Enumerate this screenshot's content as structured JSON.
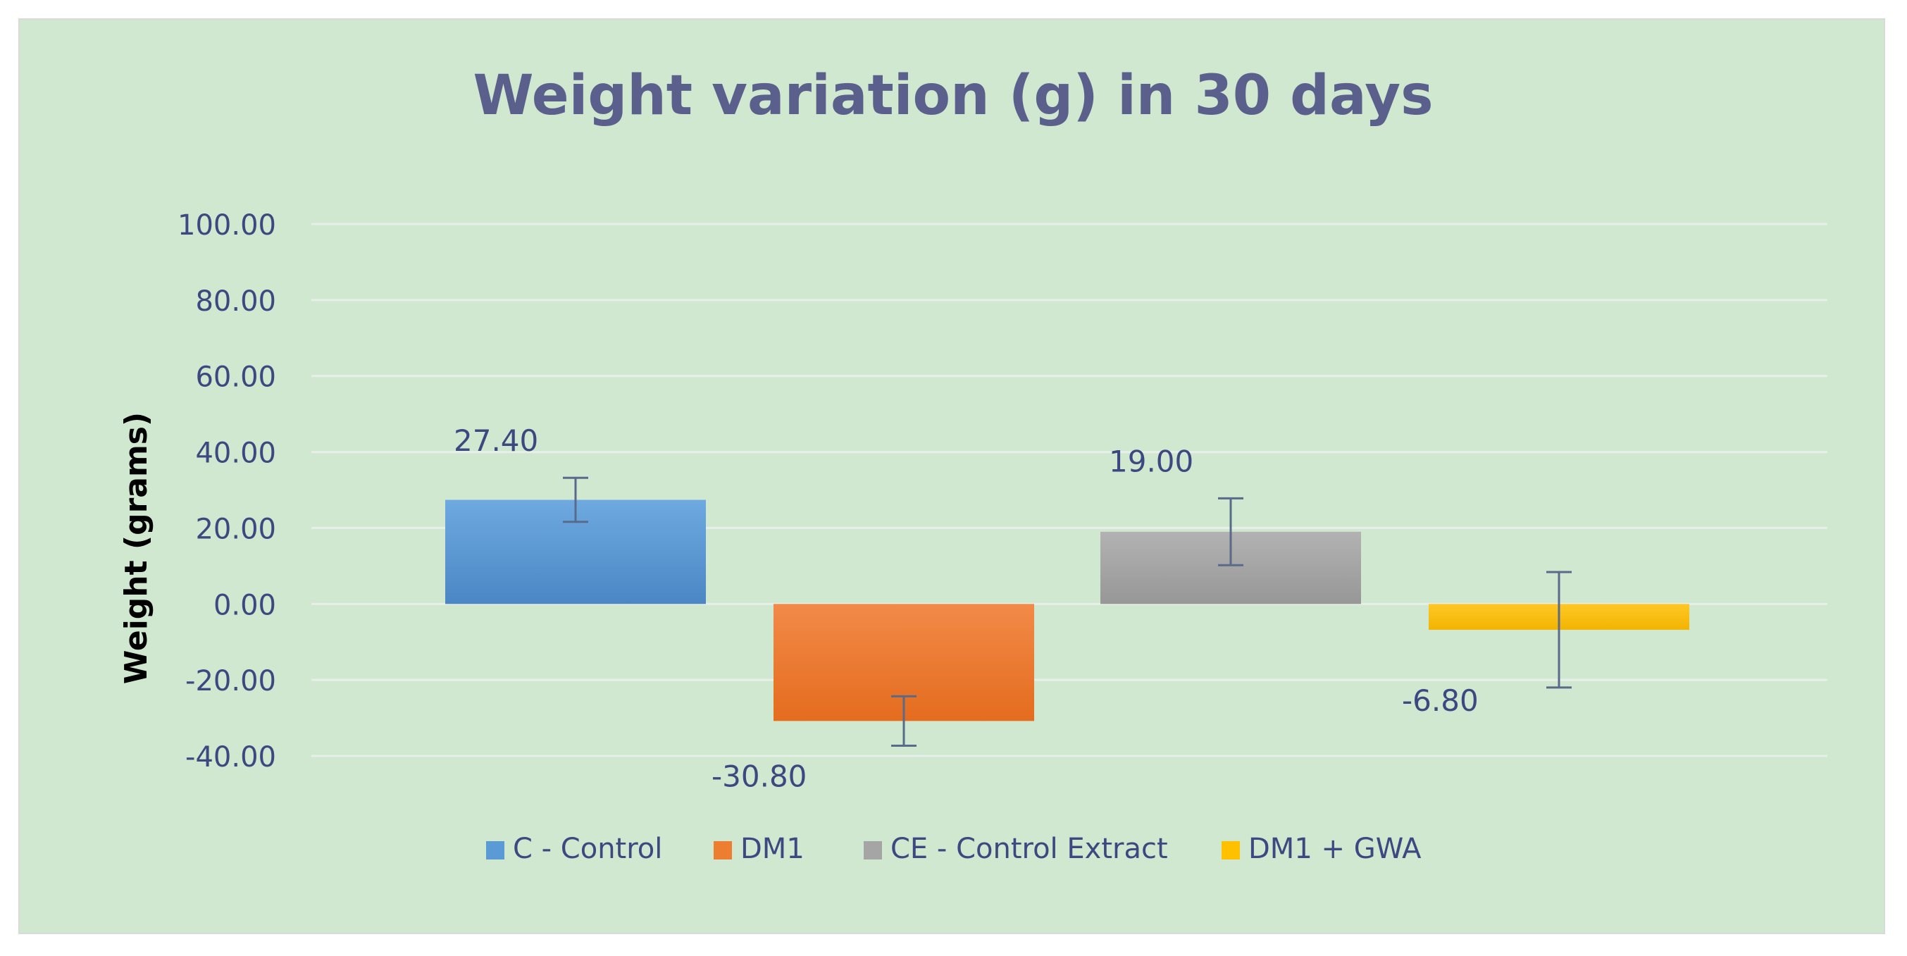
{
  "chart_data": {
    "type": "bar",
    "title": "Weight variation (g) in 30 days",
    "xlabel": "",
    "ylabel": "Weight (grams)",
    "ylim": [
      -40,
      100
    ],
    "yticks": [
      100,
      80,
      60,
      40,
      20,
      0,
      -20,
      -40
    ],
    "ytick_labels": [
      "100.00",
      "80.00",
      "60.00",
      "40.00",
      "20.00",
      "0.00",
      "-20.00",
      "-40.00"
    ],
    "grid": true,
    "legend_position": "bottom",
    "series": [
      {
        "name": "C - Control",
        "value": 27.4,
        "label": "27.40",
        "error": 5.8,
        "color": "#5b9bd5",
        "color_light": "#6ea9e0",
        "color_dark": "#4a87c4"
      },
      {
        "name": "DM1",
        "value": -30.8,
        "label": "-30.80",
        "error": 6.5,
        "color": "#ed7d31",
        "color_light": "#f28a48",
        "color_dark": "#e46c1e"
      },
      {
        "name": "CE - Control Extract",
        "value": 19.0,
        "label": "19.00",
        "error": 8.8,
        "color": "#a5a5a5",
        "color_light": "#b2b2b2",
        "color_dark": "#979797"
      },
      {
        "name": "DM1 + GWA",
        "value": -6.8,
        "label": "-6.80",
        "error": 15.2,
        "color": "#ffc000",
        "color_light": "#ffc827",
        "color_dark": "#f2b400"
      }
    ],
    "error_bar_color": "#5a6a8a",
    "gridline_color": "#e8efe8"
  }
}
